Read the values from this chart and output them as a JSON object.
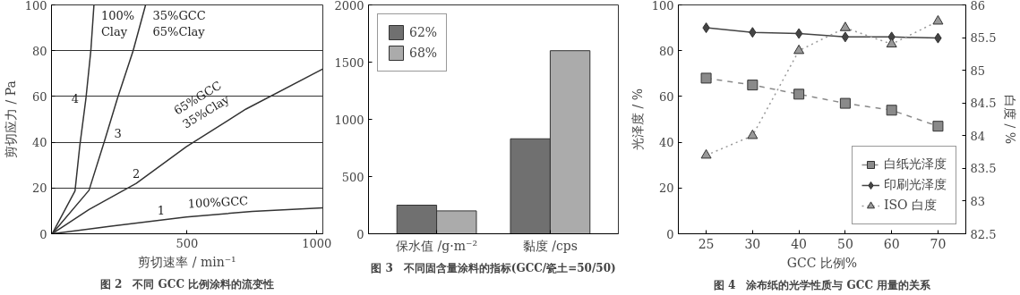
{
  "chart_data": [
    {
      "type": "line",
      "xlabel": "剪切速率 / min⁻¹",
      "ylabel": "剪切应力 / Pa",
      "xlim": [
        -22.6,
        1023
      ],
      "ylim": [
        0,
        100
      ],
      "xticks": [
        500,
        1000
      ],
      "yticks": [
        0,
        20,
        40,
        60,
        80,
        100
      ],
      "grid": "y",
      "legend": false,
      "line_style": "solid",
      "marker": "none",
      "series": [
        {
          "color": "#333333",
          "x": [
            -20,
            68,
            86,
            110,
            129,
            141
          ],
          "values": [
            0,
            18.7,
            38,
            59,
            80,
            100
          ]
        },
        {
          "color": "#333333",
          "x": [
            -20,
            122,
            183,
            231,
            292,
            340
          ],
          "values": [
            0,
            19,
            41,
            59,
            80,
            100
          ]
        },
        {
          "color": "#333333",
          "x": [
            -20,
            122,
            304,
            497,
            727,
            1023
          ],
          "values": [
            0,
            10.6,
            22,
            38,
            54.5,
            72
          ]
        },
        {
          "color": "#333333",
          "x": [
            -20,
            207,
            497,
            751,
            1023
          ],
          "values": [
            0,
            3.3,
            7.3,
            9.8,
            11.3
          ]
        }
      ],
      "annotations": [
        {
          "text": "100%\nClay",
          "x": 141,
          "y": 100
        },
        {
          "text": "35%GCC\n65%Clay",
          "x": 340,
          "y": 100
        },
        {
          "text": "65%GCC\n35%Clay",
          "x": 600,
          "y": 45.4
        },
        {
          "text": "100%GCC",
          "x": 620,
          "y": 8.5
        },
        {
          "text": "4",
          "x": 110,
          "y": 59
        },
        {
          "text": "3",
          "x": 191,
          "y": 44
        },
        {
          "text": "2",
          "x": 304,
          "y": 22
        },
        {
          "text": "1",
          "x": 400,
          "y": 6
        },
        "图 2　不同 GCC 比例涂料的流变性"
      ]
    },
    {
      "type": "bar",
      "categories": [
        "保水值 /g·m⁻²",
        "黏度 /cps"
      ],
      "ylim": [
        0,
        2000
      ],
      "yticks": [
        0,
        500,
        1000,
        1500,
        2000
      ],
      "grid": false,
      "legend": "top left",
      "series": [
        {
          "name": "62%",
          "color": "#707070",
          "values": [
            250,
            830
          ]
        },
        {
          "name": "68%",
          "color": "#ababab",
          "values": [
            200,
            1600
          ]
        }
      ],
      "annotations": [
        "图 3　不同固含量涂料的指标(GCC/瓷土=50/50)"
      ]
    },
    {
      "type": "line",
      "categories": [
        "25",
        "30",
        "40",
        "50",
        "60",
        "70"
      ],
      "xlabel": "GCC 比例%",
      "ylabel": "光泽度 / %",
      "y2label": "白度 / %",
      "ylim": [
        0,
        100
      ],
      "yticks": [
        0,
        20,
        40,
        60,
        80,
        100
      ],
      "y2lim": [
        82.5,
        86
      ],
      "y2ticks": [
        82.5,
        83,
        83.5,
        84,
        84.5,
        85,
        85.5,
        86
      ],
      "grid": false,
      "legend": "bottom right",
      "series": [
        {
          "name": "白纸光泽度",
          "color": "#8a8a8a",
          "marker": "square",
          "line_style": "dashed",
          "values": [
            68,
            65,
            61,
            57,
            54,
            47
          ]
        },
        {
          "name": "印刷光泽度",
          "color": "#444444",
          "marker": "diamond",
          "line_style": "solid",
          "values": [
            90,
            88,
            87.5,
            86,
            86,
            85.5
          ]
        },
        {
          "name": "ISO 白度",
          "color": "#999999",
          "marker": "triangle",
          "line_style": "dotted",
          "axis": "y2",
          "values": [
            83.7,
            84.0,
            85.3,
            85.65,
            85.4,
            85.75
          ]
        }
      ],
      "annotations": [
        "图 4　涂布纸的光学性质与 GCC 用量的关系"
      ]
    }
  ]
}
